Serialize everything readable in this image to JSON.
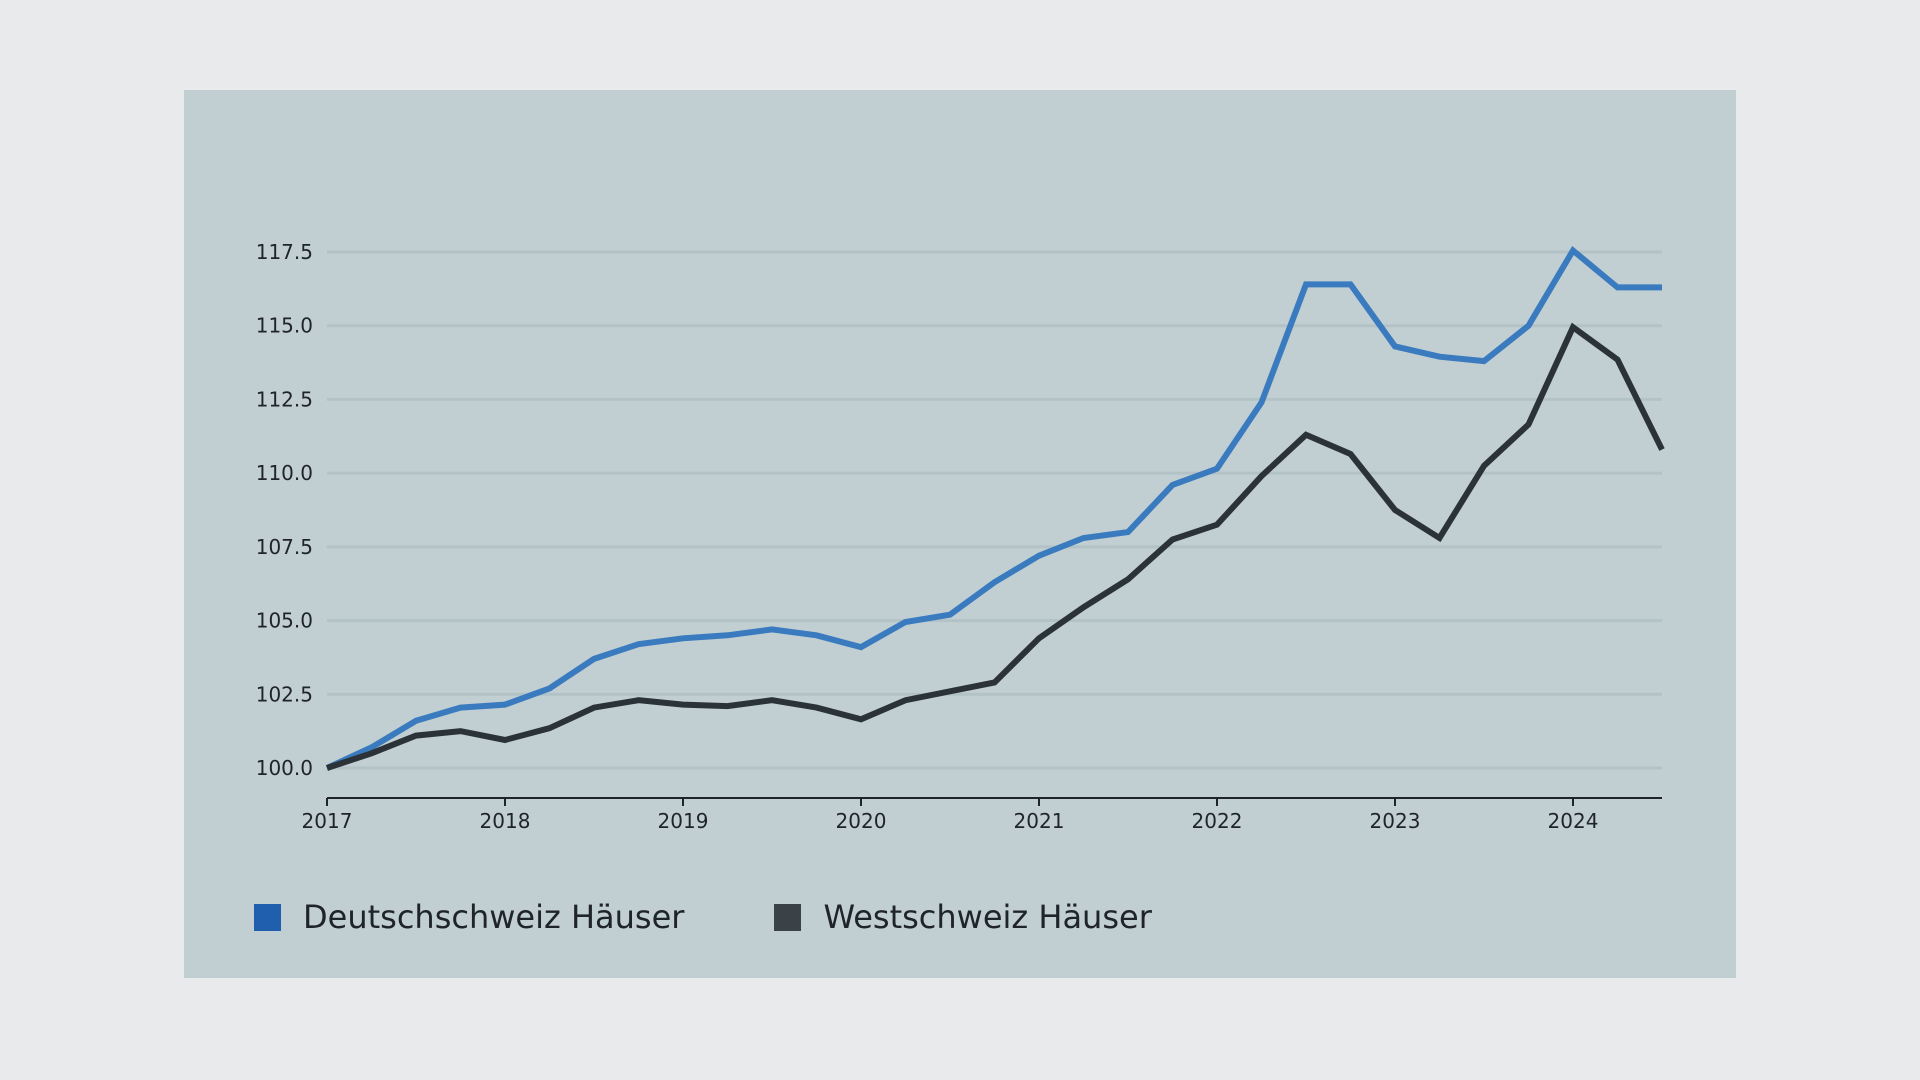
{
  "chart_data": {
    "type": "line",
    "title": "",
    "xlabel": "",
    "ylabel": "",
    "xlim": [
      2017,
      2024.5
    ],
    "ylim": [
      99.5,
      118.0
    ],
    "x_ticks": [
      2017,
      2018,
      2019,
      2020,
      2021,
      2022,
      2023,
      2024
    ],
    "x_tick_labels": [
      "2017",
      "2018",
      "2019",
      "2020",
      "2021",
      "2022",
      "2023",
      "2024"
    ],
    "y_ticks": [
      100,
      102.5,
      105,
      107.5,
      110,
      112.5,
      115,
      117.5
    ],
    "y_tick_labels": [
      "100.0",
      "102.5",
      "105.0",
      "107.5",
      "110.0",
      "112.5",
      "115.0",
      "117.5"
    ],
    "grid": "horizontal",
    "legend_position": "bottom-left",
    "x": [
      2017,
      2017.25,
      2017.5,
      2017.75,
      2018,
      2018.25,
      2018.5,
      2018.75,
      2019,
      2019.25,
      2019.5,
      2019.75,
      2020,
      2020.25,
      2020.5,
      2020.75,
      2021,
      2021.25,
      2021.5,
      2021.75,
      2022,
      2022.25,
      2022.5,
      2022.75,
      2023,
      2023.25,
      2023.5,
      2023.75,
      2024,
      2024.25,
      2024.5
    ],
    "series": [
      {
        "name": "Deutschschweiz Häuser",
        "color": "#3a7bbf",
        "legend_color": "#1f5fae",
        "values": [
          100.0,
          100.7,
          101.6,
          102.05,
          102.15,
          102.7,
          103.7,
          104.2,
          104.4,
          104.5,
          104.7,
          104.5,
          104.1,
          104.95,
          105.2,
          106.3,
          107.2,
          107.8,
          108.0,
          109.6,
          110.15,
          112.4,
          116.4,
          116.4,
          114.3,
          113.95,
          113.8,
          115.0,
          117.55,
          116.3,
          116.3
        ]
      },
      {
        "name": "Westschweiz Häuser",
        "color": "#2b3339",
        "legend_color": "#3a4248",
        "values": [
          100.0,
          100.5,
          101.1,
          101.25,
          100.95,
          101.35,
          102.05,
          102.3,
          102.15,
          102.1,
          102.3,
          102.05,
          101.65,
          102.3,
          102.6,
          102.9,
          104.4,
          105.45,
          106.4,
          107.75,
          108.25,
          109.9,
          111.3,
          110.65,
          108.75,
          107.8,
          110.25,
          111.65,
          114.95,
          113.85,
          110.8
        ]
      }
    ]
  }
}
